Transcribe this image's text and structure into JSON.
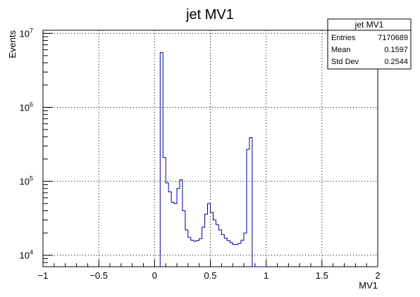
{
  "chart_data": {
    "type": "histogram",
    "title": "jet MV1",
    "xlabel": "MV1",
    "ylabel": "Events",
    "xlim": [
      -1,
      2
    ],
    "ylim": [
      7000,
      11000000
    ],
    "yscale": "log",
    "grid": true,
    "line_color": "#000099",
    "x_ticks": [
      {
        "value": -1,
        "label": "−1"
      },
      {
        "value": -0.5,
        "label": "−0.5"
      },
      {
        "value": 0,
        "label": "0"
      },
      {
        "value": 0.5,
        "label": "0.5"
      },
      {
        "value": 1,
        "label": "1"
      },
      {
        "value": 1.5,
        "label": "1.5"
      },
      {
        "value": 2,
        "label": "2"
      }
    ],
    "y_ticks": [
      {
        "value": 10000,
        "base": "10",
        "exp": "4"
      },
      {
        "value": 100000,
        "base": "10",
        "exp": "5"
      },
      {
        "value": 1000000,
        "base": "10",
        "exp": "6"
      },
      {
        "value": 10000000,
        "base": "10",
        "exp": "7"
      }
    ],
    "bins": {
      "low_edges": [
        0.05,
        0.075,
        0.1,
        0.125,
        0.15,
        0.175,
        0.2,
        0.225,
        0.25,
        0.275,
        0.3,
        0.325,
        0.35,
        0.375,
        0.4,
        0.425,
        0.45,
        0.475,
        0.5,
        0.525,
        0.55,
        0.575,
        0.6,
        0.625,
        0.65,
        0.675,
        0.7,
        0.725,
        0.75,
        0.775,
        0.8,
        0.825,
        0.85,
        0.875,
        0.9,
        0.925,
        0.95,
        0.975
      ],
      "width": 0.025,
      "counts": [
        5500000,
        210000,
        95000,
        72000,
        52000,
        50000,
        80000,
        105000,
        40000,
        22000,
        17500,
        16000,
        15500,
        15800,
        16800,
        24000,
        36000,
        50000,
        38000,
        30000,
        26000,
        22000,
        19000,
        17000,
        15800,
        14800,
        14000,
        14000,
        14500,
        16000,
        20000,
        270000,
        390000,
        0,
        0,
        0,
        0,
        0
      ]
    },
    "stats": {
      "title": "jet MV1",
      "rows": [
        {
          "label": "Entries",
          "value": "7170689"
        },
        {
          "label": "Mean",
          "value": "0.1597"
        },
        {
          "label": "Std Dev",
          "value": "0.2544"
        }
      ]
    }
  }
}
